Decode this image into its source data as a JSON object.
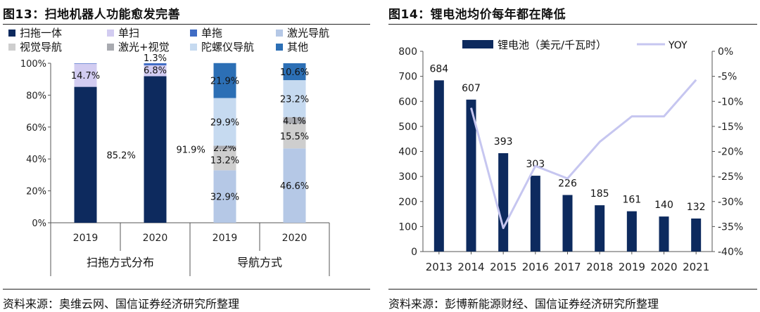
{
  "figures": [
    {
      "title": "图13：扫地机器人功能愈发完善",
      "source": "资料来源：奥维云网、国信证券经济研究所整理"
    },
    {
      "title": "图14：锂电池均价每年都在降低",
      "source": "资料来源：彭博新能源财经、国信证券经济研究所整理"
    }
  ],
  "colors": {
    "navy": "#0d2a5e",
    "lavender": "#d2ccf1",
    "blue": "#3f6cc4",
    "lightblue": "#b5c8e6",
    "lightgray": "#cecece",
    "gray": "#a8aab0",
    "paleblue": "#c6daf0",
    "steel": "#2c6fb5",
    "yoy": "#c6c6f0"
  },
  "chart_data": [
    {
      "type": "bar",
      "stacked": true,
      "title": "扫地机器人功能愈发完善",
      "categories": [
        "2019",
        "2020",
        "2019",
        "2020"
      ],
      "groups": [
        {
          "label": "扫拖方式分布",
          "categories": [
            "2019",
            "2020"
          ]
        },
        {
          "label": "导航方式",
          "categories": [
            "2019",
            "2020"
          ]
        }
      ],
      "ylim": [
        0,
        100
      ],
      "yticks": [
        "0%",
        "20%",
        "40%",
        "60%",
        "80%",
        "100%"
      ],
      "legend": [
        "扫拖一体",
        "单扫",
        "单拖",
        "激光导航",
        "视觉导航",
        "激光+视觉",
        "陀螺仪导航",
        "其他"
      ],
      "series": [
        {
          "name": "扫拖一体",
          "color": "#0d2a5e",
          "values": [
            85.2,
            91.9,
            null,
            null
          ],
          "labels": [
            "85.2%",
            "91.9%",
            "",
            ""
          ]
        },
        {
          "name": "单扫",
          "color": "#d2ccf1",
          "values": [
            14.7,
            6.8,
            null,
            null
          ],
          "labels": [
            "14.7%",
            "6.8%",
            "",
            ""
          ]
        },
        {
          "name": "单拖",
          "color": "#3f6cc4",
          "values": [
            0.1,
            1.3,
            null,
            null
          ],
          "labels": [
            "",
            "1.3%",
            "",
            ""
          ]
        },
        {
          "name": "激光导航",
          "color": "#b5c8e6",
          "values": [
            null,
            null,
            32.9,
            46.6
          ],
          "labels": [
            "",
            "",
            "32.9%",
            "46.6%"
          ]
        },
        {
          "name": "视觉导航",
          "color": "#cecece",
          "values": [
            null,
            null,
            13.2,
            15.5
          ],
          "labels": [
            "",
            "",
            "13.2%",
            "15.5%"
          ]
        },
        {
          "name": "激光+视觉",
          "color": "#a8aab0",
          "values": [
            null,
            null,
            2.2,
            4.1
          ],
          "labels": [
            "",
            "",
            "2.2%",
            "4.1%"
          ]
        },
        {
          "name": "陀螺仪导航",
          "color": "#c6daf0",
          "values": [
            null,
            null,
            29.9,
            23.2
          ],
          "labels": [
            "",
            "",
            "29.9%",
            "23.2%"
          ]
        },
        {
          "name": "其他",
          "color": "#2c6fb5",
          "values": [
            null,
            null,
            21.9,
            10.6
          ],
          "labels": [
            "",
            "",
            "21.9%",
            "10.6%"
          ]
        }
      ]
    },
    {
      "type": "bar+line",
      "title": "锂电池均价每年都在降低",
      "categories": [
        "2013",
        "2014",
        "2015",
        "2016",
        "2017",
        "2018",
        "2019",
        "2020",
        "2021"
      ],
      "series": [
        {
          "name": "锂电池（美元/千瓦时）",
          "type": "bar",
          "axis": "left",
          "color": "#0d2a5e",
          "values": [
            684,
            607,
            393,
            303,
            226,
            185,
            161,
            140,
            132
          ]
        },
        {
          "name": "YOY",
          "type": "line",
          "axis": "right",
          "color": "#c6c6f0",
          "values": [
            null,
            -11.3,
            -35.3,
            -22.9,
            -25.4,
            -18.1,
            -13.0,
            -13.0,
            -5.7
          ]
        }
      ],
      "ylim_left": [
        0,
        800
      ],
      "yticks_left": [
        "0",
        "100",
        "200",
        "300",
        "400",
        "500",
        "600",
        "700",
        "800"
      ],
      "ylim_right": [
        -40,
        0
      ],
      "yticks_right": [
        "0%",
        "-5%",
        "-10%",
        "-15%",
        "-20%",
        "-25%",
        "-30%",
        "-35%",
        "-40%"
      ]
    }
  ]
}
